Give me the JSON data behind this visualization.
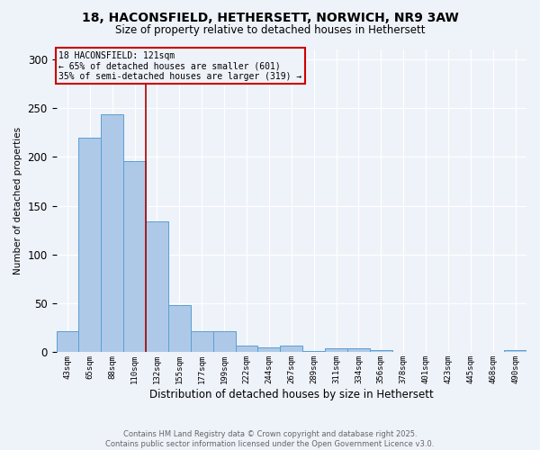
{
  "title_line1": "18, HACONSFIELD, HETHERSETT, NORWICH, NR9 3AW",
  "title_line2": "Size of property relative to detached houses in Hethersett",
  "categories": [
    "43sqm",
    "65sqm",
    "88sqm",
    "110sqm",
    "132sqm",
    "155sqm",
    "177sqm",
    "199sqm",
    "222sqm",
    "244sqm",
    "267sqm",
    "289sqm",
    "311sqm",
    "334sqm",
    "356sqm",
    "378sqm",
    "401sqm",
    "423sqm",
    "445sqm",
    "468sqm",
    "490sqm"
  ],
  "values": [
    22,
    220,
    244,
    196,
    134,
    48,
    22,
    22,
    7,
    5,
    7,
    1,
    4,
    4,
    2,
    0,
    0,
    0,
    0,
    0,
    2
  ],
  "bar_color": "#aec9e8",
  "bar_edgecolor": "#5a9fd4",
  "ylabel": "Number of detached properties",
  "xlabel": "Distribution of detached houses by size in Hethersett",
  "ylim": [
    0,
    310
  ],
  "annotation_title": "18 HACONSFIELD: 121sqm",
  "annotation_line2": "← 65% of detached houses are smaller (601)",
  "annotation_line3": "35% of semi-detached houses are larger (319) →",
  "annotation_box_color": "#cc0000",
  "red_line_x": 3.5,
  "footnote_line1": "Contains HM Land Registry data © Crown copyright and database right 2025.",
  "footnote_line2": "Contains public sector information licensed under the Open Government Licence v3.0.",
  "bg_color": "#eef2f9",
  "grid_color": "#ffffff"
}
